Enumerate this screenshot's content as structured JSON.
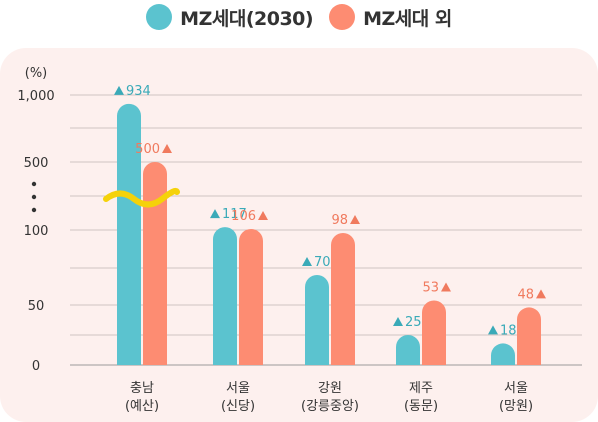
{
  "legend": {
    "items": [
      {
        "label": "MZ세대(2030)",
        "color": "#5bc3cf"
      },
      {
        "label": "MZ세대 외",
        "color": "#fd8c72"
      }
    ]
  },
  "chart_data": {
    "type": "bar",
    "unit": "(%)",
    "y_ticks": [
      "1,000",
      "500",
      "100",
      "50",
      "0"
    ],
    "axis_break": true,
    "categories": [
      {
        "line1": "충남",
        "line2": "(예산)"
      },
      {
        "line1": "서울",
        "line2": "(신당)"
      },
      {
        "line1": "강원",
        "line2": "(강릉중앙)"
      },
      {
        "line1": "제주",
        "line2": "(동문)"
      },
      {
        "line1": "서울",
        "line2": "(망원)"
      }
    ],
    "series": [
      {
        "name": "MZ세대(2030)",
        "color": "#5bc3cf",
        "label_color": "#3aaab8",
        "values": [
          934,
          117,
          70,
          25,
          18
        ]
      },
      {
        "name": "MZ세대 외",
        "color": "#fd8c72",
        "label_color": "#f07a5e",
        "values": [
          500,
          106,
          98,
          53,
          48
        ]
      }
    ],
    "value_marker": "▲",
    "break_color": "#f5d20a",
    "grid": true
  }
}
